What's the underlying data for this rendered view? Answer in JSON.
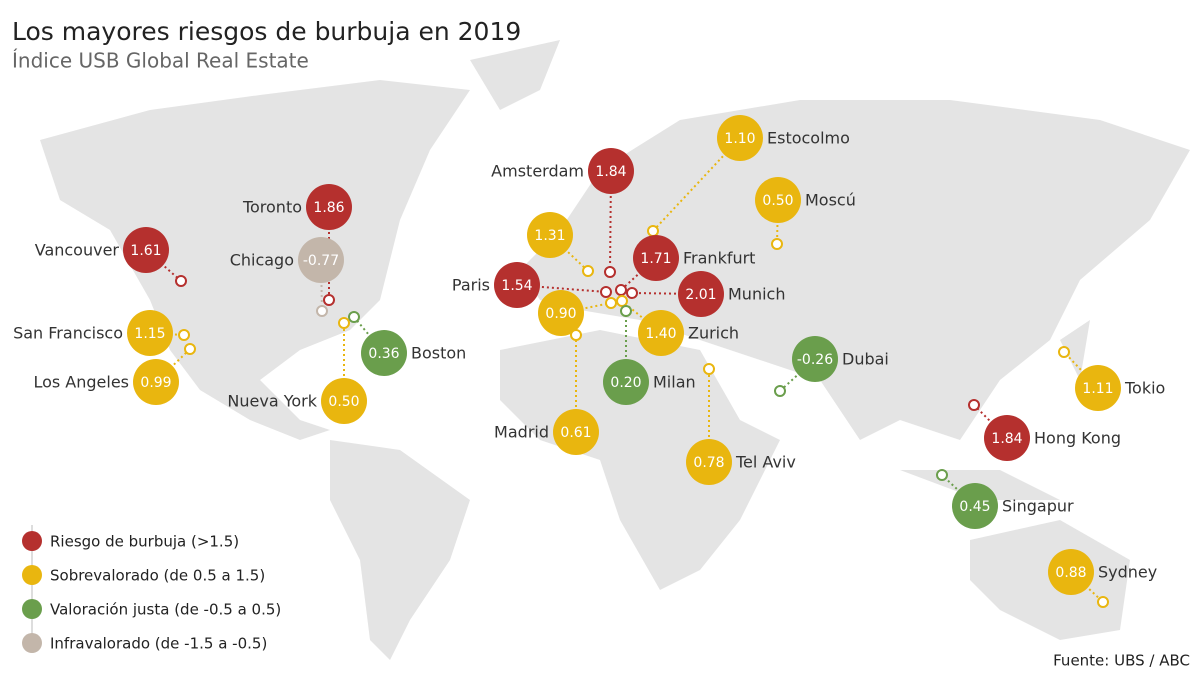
{
  "header": {
    "title": "Los mayores riesgos de burbuja en 2019",
    "subtitle": "Índice USB Global Real Estate"
  },
  "legend": [
    {
      "label": "Riesgo de burbuja (>1.5)",
      "color": "#b5302e"
    },
    {
      "label": "Sobrevalorado (de 0.5 a 1.5)",
      "color": "#e9b60f"
    },
    {
      "label": "Valoración justa (de -0.5 a 0.5)",
      "color": "#6a9e4c"
    },
    {
      "label": "Infravalorado (de -1.5 a -0.5)",
      "color": "#c3b6aa"
    }
  ],
  "cities": [
    {
      "name": "Amsterdam",
      "value": "1.84",
      "color": "#b5302e"
    },
    {
      "name": "Estocolmo",
      "value": "1.10",
      "color": "#e9b60f"
    },
    {
      "name": "Toronto",
      "value": "1.86",
      "color": "#b5302e"
    },
    {
      "name": "Vancouver",
      "value": "1.61",
      "color": "#b5302e"
    },
    {
      "name": "Chicago",
      "value": "-0.77",
      "color": "#c3b6aa"
    },
    {
      "name": "Moscú",
      "value": "0.50",
      "color": "#e9b60f"
    },
    {
      "name": null,
      "value": "1.31",
      "color": "#e9b60f"
    },
    {
      "name": "Frankfurt",
      "value": "1.71",
      "color": "#b5302e"
    },
    {
      "name": "Paris",
      "value": "1.54",
      "color": "#b5302e"
    },
    {
      "name": "Munich",
      "value": "2.01",
      "color": "#b5302e"
    },
    {
      "name": "San Francisco",
      "value": "1.15",
      "color": "#e9b60f"
    },
    {
      "name": "Los Angeles",
      "value": "0.99",
      "color": "#e9b60f"
    },
    {
      "name": null,
      "value": "0.90",
      "color": "#e9b60f"
    },
    {
      "name": "Zurich",
      "value": "1.40",
      "color": "#e9b60f"
    },
    {
      "name": "Boston",
      "value": "0.36",
      "color": "#6a9e4c"
    },
    {
      "name": "Nueva York",
      "value": "0.50",
      "color": "#e9b60f"
    },
    {
      "name": "Milan",
      "value": "0.20",
      "color": "#6a9e4c"
    },
    {
      "name": "Dubai",
      "value": "-0.26",
      "color": "#6a9e4c"
    },
    {
      "name": "Madrid",
      "value": "0.61",
      "color": "#e9b60f"
    },
    {
      "name": "Tel Aviv",
      "value": "0.78",
      "color": "#e9b60f"
    },
    {
      "name": "Tokio",
      "value": "1.11",
      "color": "#e9b60f"
    },
    {
      "name": "Hong Kong",
      "value": "1.84",
      "color": "#b5302e"
    },
    {
      "name": "Singapur",
      "value": "0.45",
      "color": "#6a9e4c"
    },
    {
      "name": "Sydney",
      "value": "0.88",
      "color": "#e9b60f"
    }
  ],
  "source": "Fuente: UBS / ABC"
}
